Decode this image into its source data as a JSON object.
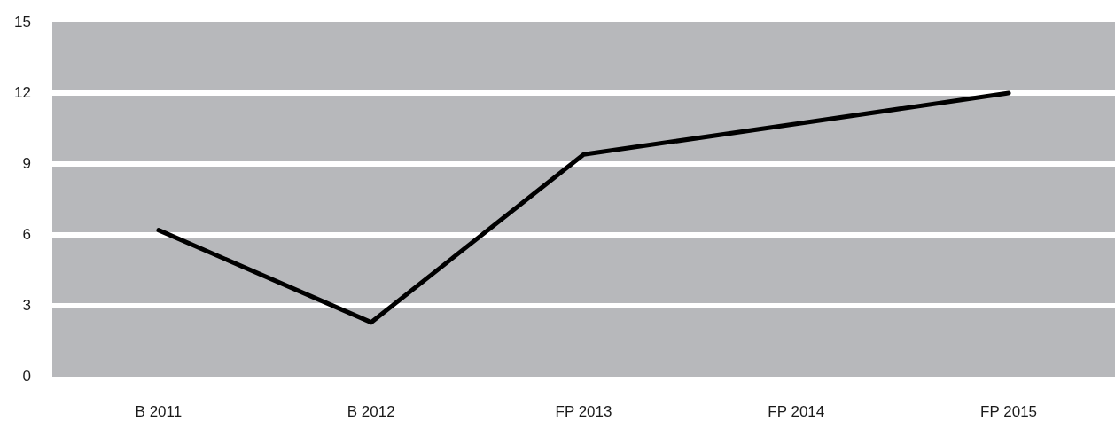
{
  "chart_data": {
    "type": "line",
    "categories": [
      "B 2011",
      "B 2012",
      "FP 2013",
      "FP 2014",
      "FP 2015"
    ],
    "series": [
      {
        "color": "#000000",
        "values": [
          6.2,
          2.3,
          9.4,
          10.7,
          12.0
        ]
      }
    ],
    "ylim": [
      0,
      15
    ],
    "yticks": [
      0,
      3,
      6,
      9,
      12,
      15
    ],
    "grid": "y",
    "line_style": "solid"
  }
}
